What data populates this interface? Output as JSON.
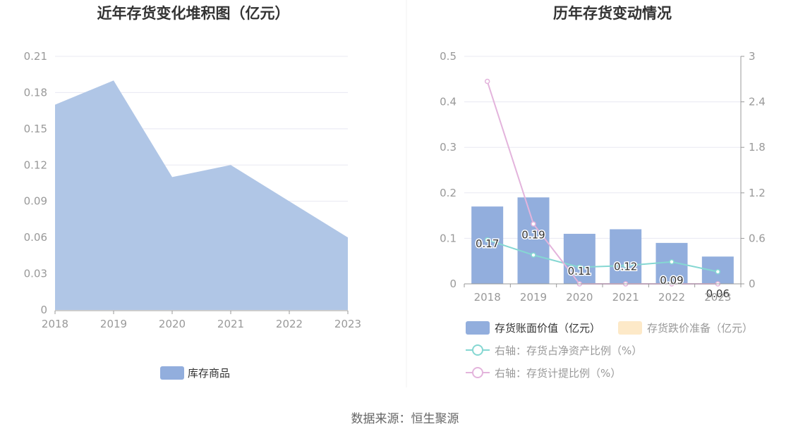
{
  "source_text": "数据来源：恒生聚源",
  "chart_data": [
    {
      "type": "area",
      "title": "近年存货变化堆积图（亿元）",
      "x": [
        "2018",
        "2019",
        "2020",
        "2021",
        "2022",
        "2023"
      ],
      "y_ticks": [
        "0",
        "0.03",
        "0.06",
        "0.09",
        "0.12",
        "0.15",
        "0.18",
        "0.21"
      ],
      "ylim": [
        0,
        0.21
      ],
      "grid": true,
      "legend_position": "bottom",
      "series": [
        {
          "name": "库存商品",
          "values": [
            0.17,
            0.19,
            0.11,
            0.12,
            0.09,
            0.06
          ],
          "color": "#b0c6e6",
          "legend_color": "#92aedd"
        }
      ]
    },
    {
      "type": "bar",
      "title": "历年存货变动情况",
      "categories": [
        "2018",
        "2019",
        "2020",
        "2021",
        "2022",
        "2023"
      ],
      "y_ticks_left": [
        "0",
        "0.1",
        "0.2",
        "0.3",
        "0.4",
        "0.5"
      ],
      "y_ticks_right": [
        "0",
        "0.6",
        "1.2",
        "1.8",
        "2.4",
        "3"
      ],
      "ylim_left": [
        0,
        0.5
      ],
      "ylim_right": [
        0,
        3
      ],
      "grid": true,
      "legend_position": "bottom",
      "series": [
        {
          "name": "存货账面价值（亿元）",
          "type": "bar",
          "axis": "left",
          "values": [
            0.17,
            0.19,
            0.11,
            0.12,
            0.09,
            0.06
          ],
          "labels": [
            "0.17",
            "0.19",
            "0.11",
            "0.12",
            "0.09",
            "0.06"
          ],
          "color": "#92aedd"
        },
        {
          "name": "存货跌价准备（亿元）",
          "type": "bar",
          "axis": "left",
          "values": [
            0,
            0,
            0,
            0,
            0,
            0
          ],
          "color": "#fde9c8"
        },
        {
          "name": "右轴：存货占净资产比例（%）",
          "type": "line",
          "axis": "right",
          "values": [
            0.58,
            0.38,
            0.22,
            0.24,
            0.29,
            0.16
          ],
          "color": "#85d7d2"
        },
        {
          "name": "右轴：存货计提比例（%）",
          "type": "line",
          "axis": "right",
          "values": [
            2.67,
            0.79,
            0,
            0,
            0,
            0
          ],
          "color": "#e3b4dc"
        }
      ]
    }
  ]
}
